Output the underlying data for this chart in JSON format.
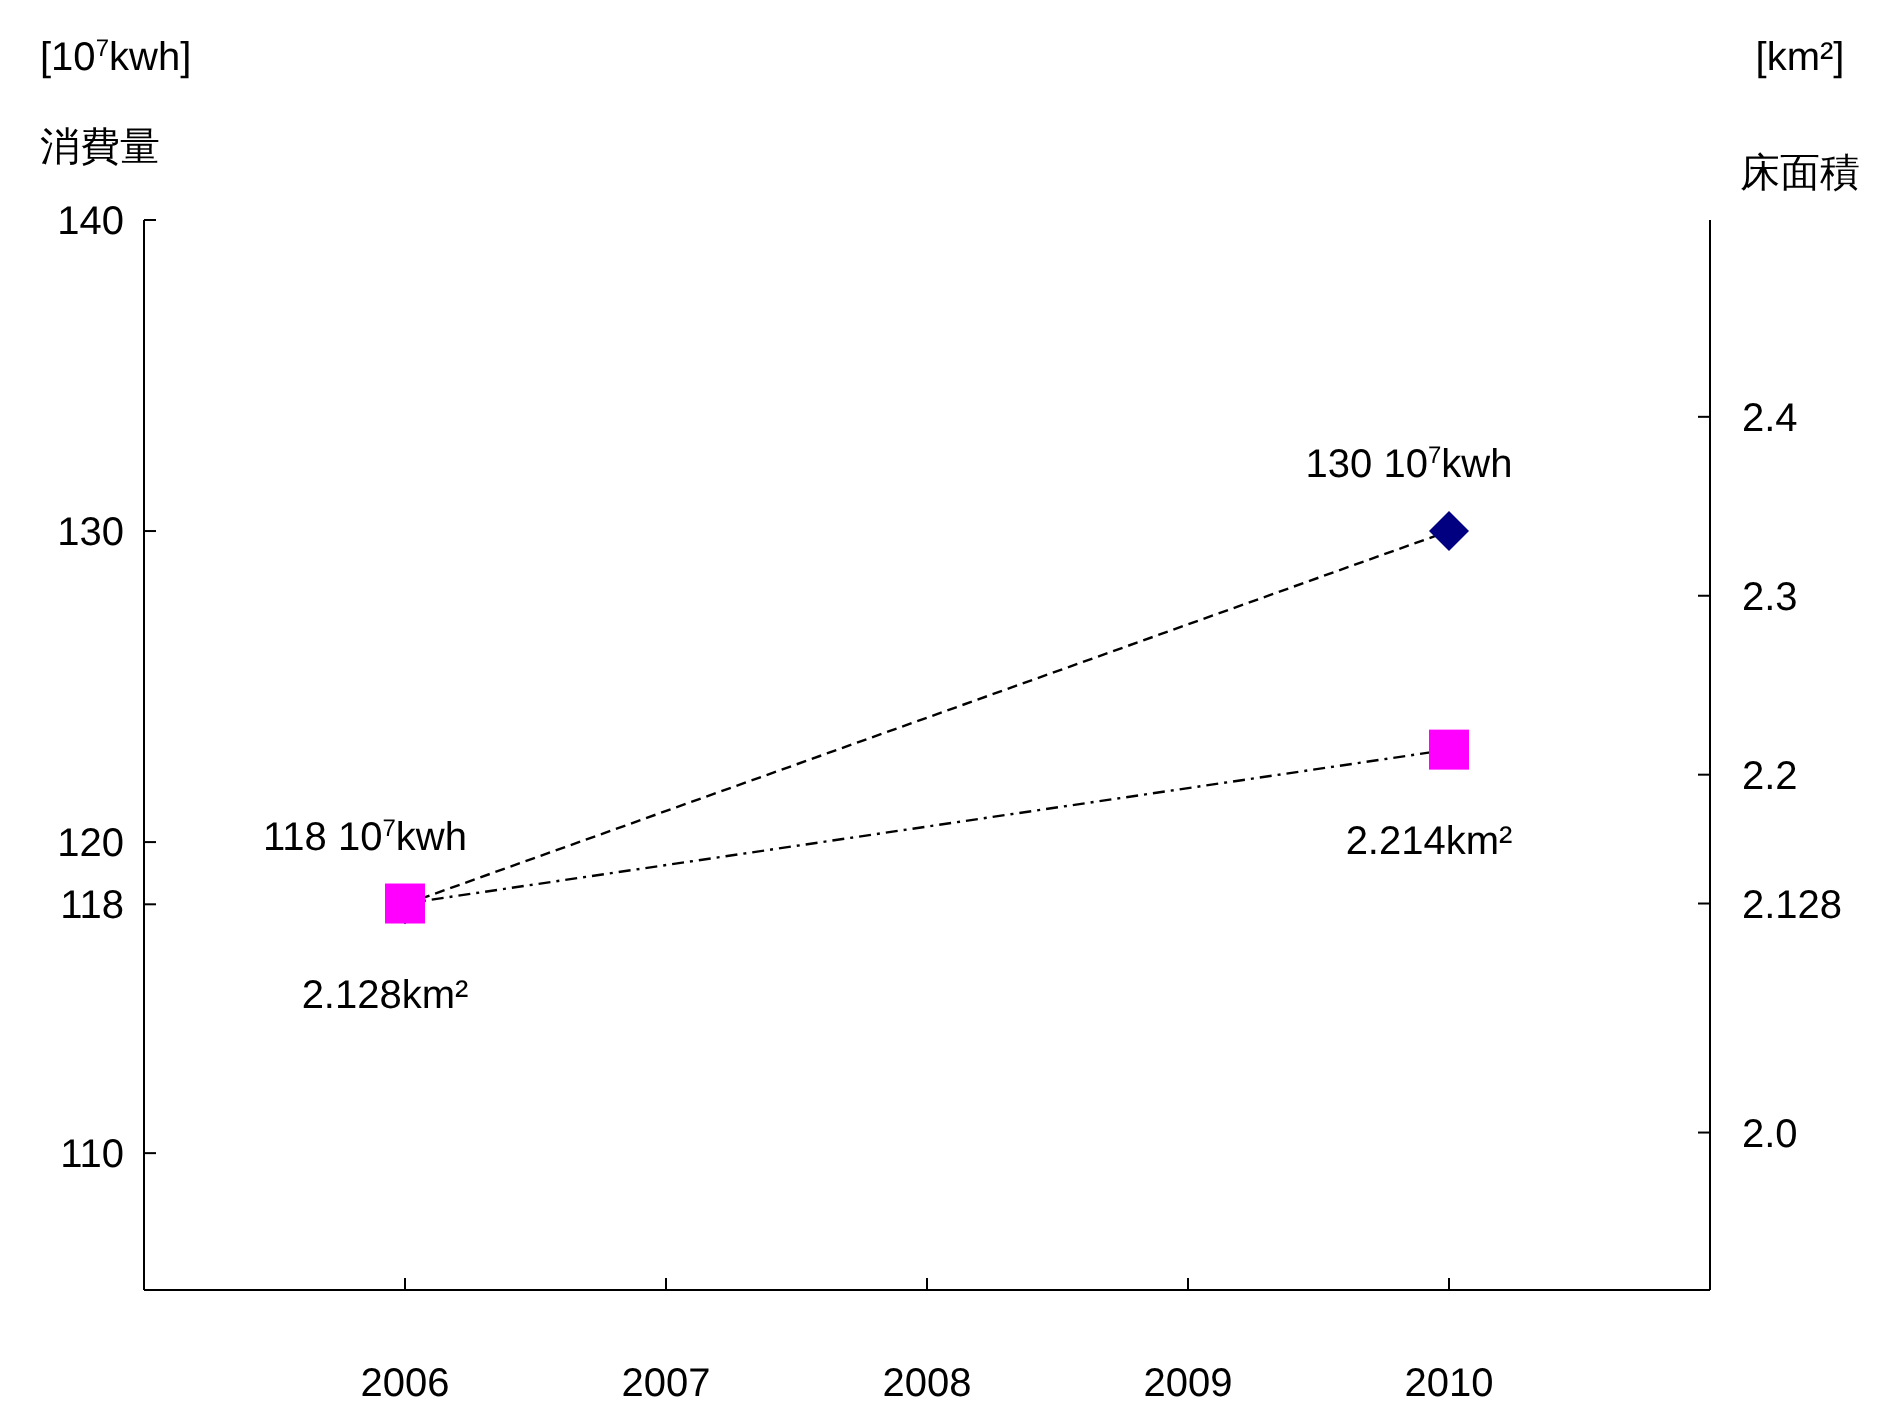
{
  "chart_data": {
    "type": "line",
    "ylabel": "[10$^{7}$kwh]\n消費量",
    "y2label": "[km²]\n床面積",
    "x": [
      2006,
      2010
    ],
    "xlim": [
      2005,
      2011
    ],
    "xticks": [
      2006,
      2007,
      2008,
      2009,
      2010
    ],
    "ylim": [
      105.6,
      140
    ],
    "yticks": [
      110,
      118,
      120,
      130,
      140
    ],
    "y2lim": [
      1.912,
      2.51
    ],
    "y2ticks": [
      {
        "value": 2.0,
        "label": "2.0"
      },
      2.128,
      2.2,
      2.3,
      2.4
    ],
    "grid": false,
    "series": [
      {
        "color": "#000080",
        "marker": "diamond",
        "line_style": "dashed",
        "values": [
          118,
          130
        ],
        "value_labels": [
          "118 10$^{7}$kwh",
          "130 10$^{7}$kwh"
        ]
      },
      {
        "color": "#ff00ff",
        "marker": "square",
        "line_style": "dashdot",
        "axis": "y2",
        "values": [
          2.128,
          2.214
        ],
        "value_labels": [
          "2.128km²",
          "2.214km²"
        ]
      }
    ]
  }
}
